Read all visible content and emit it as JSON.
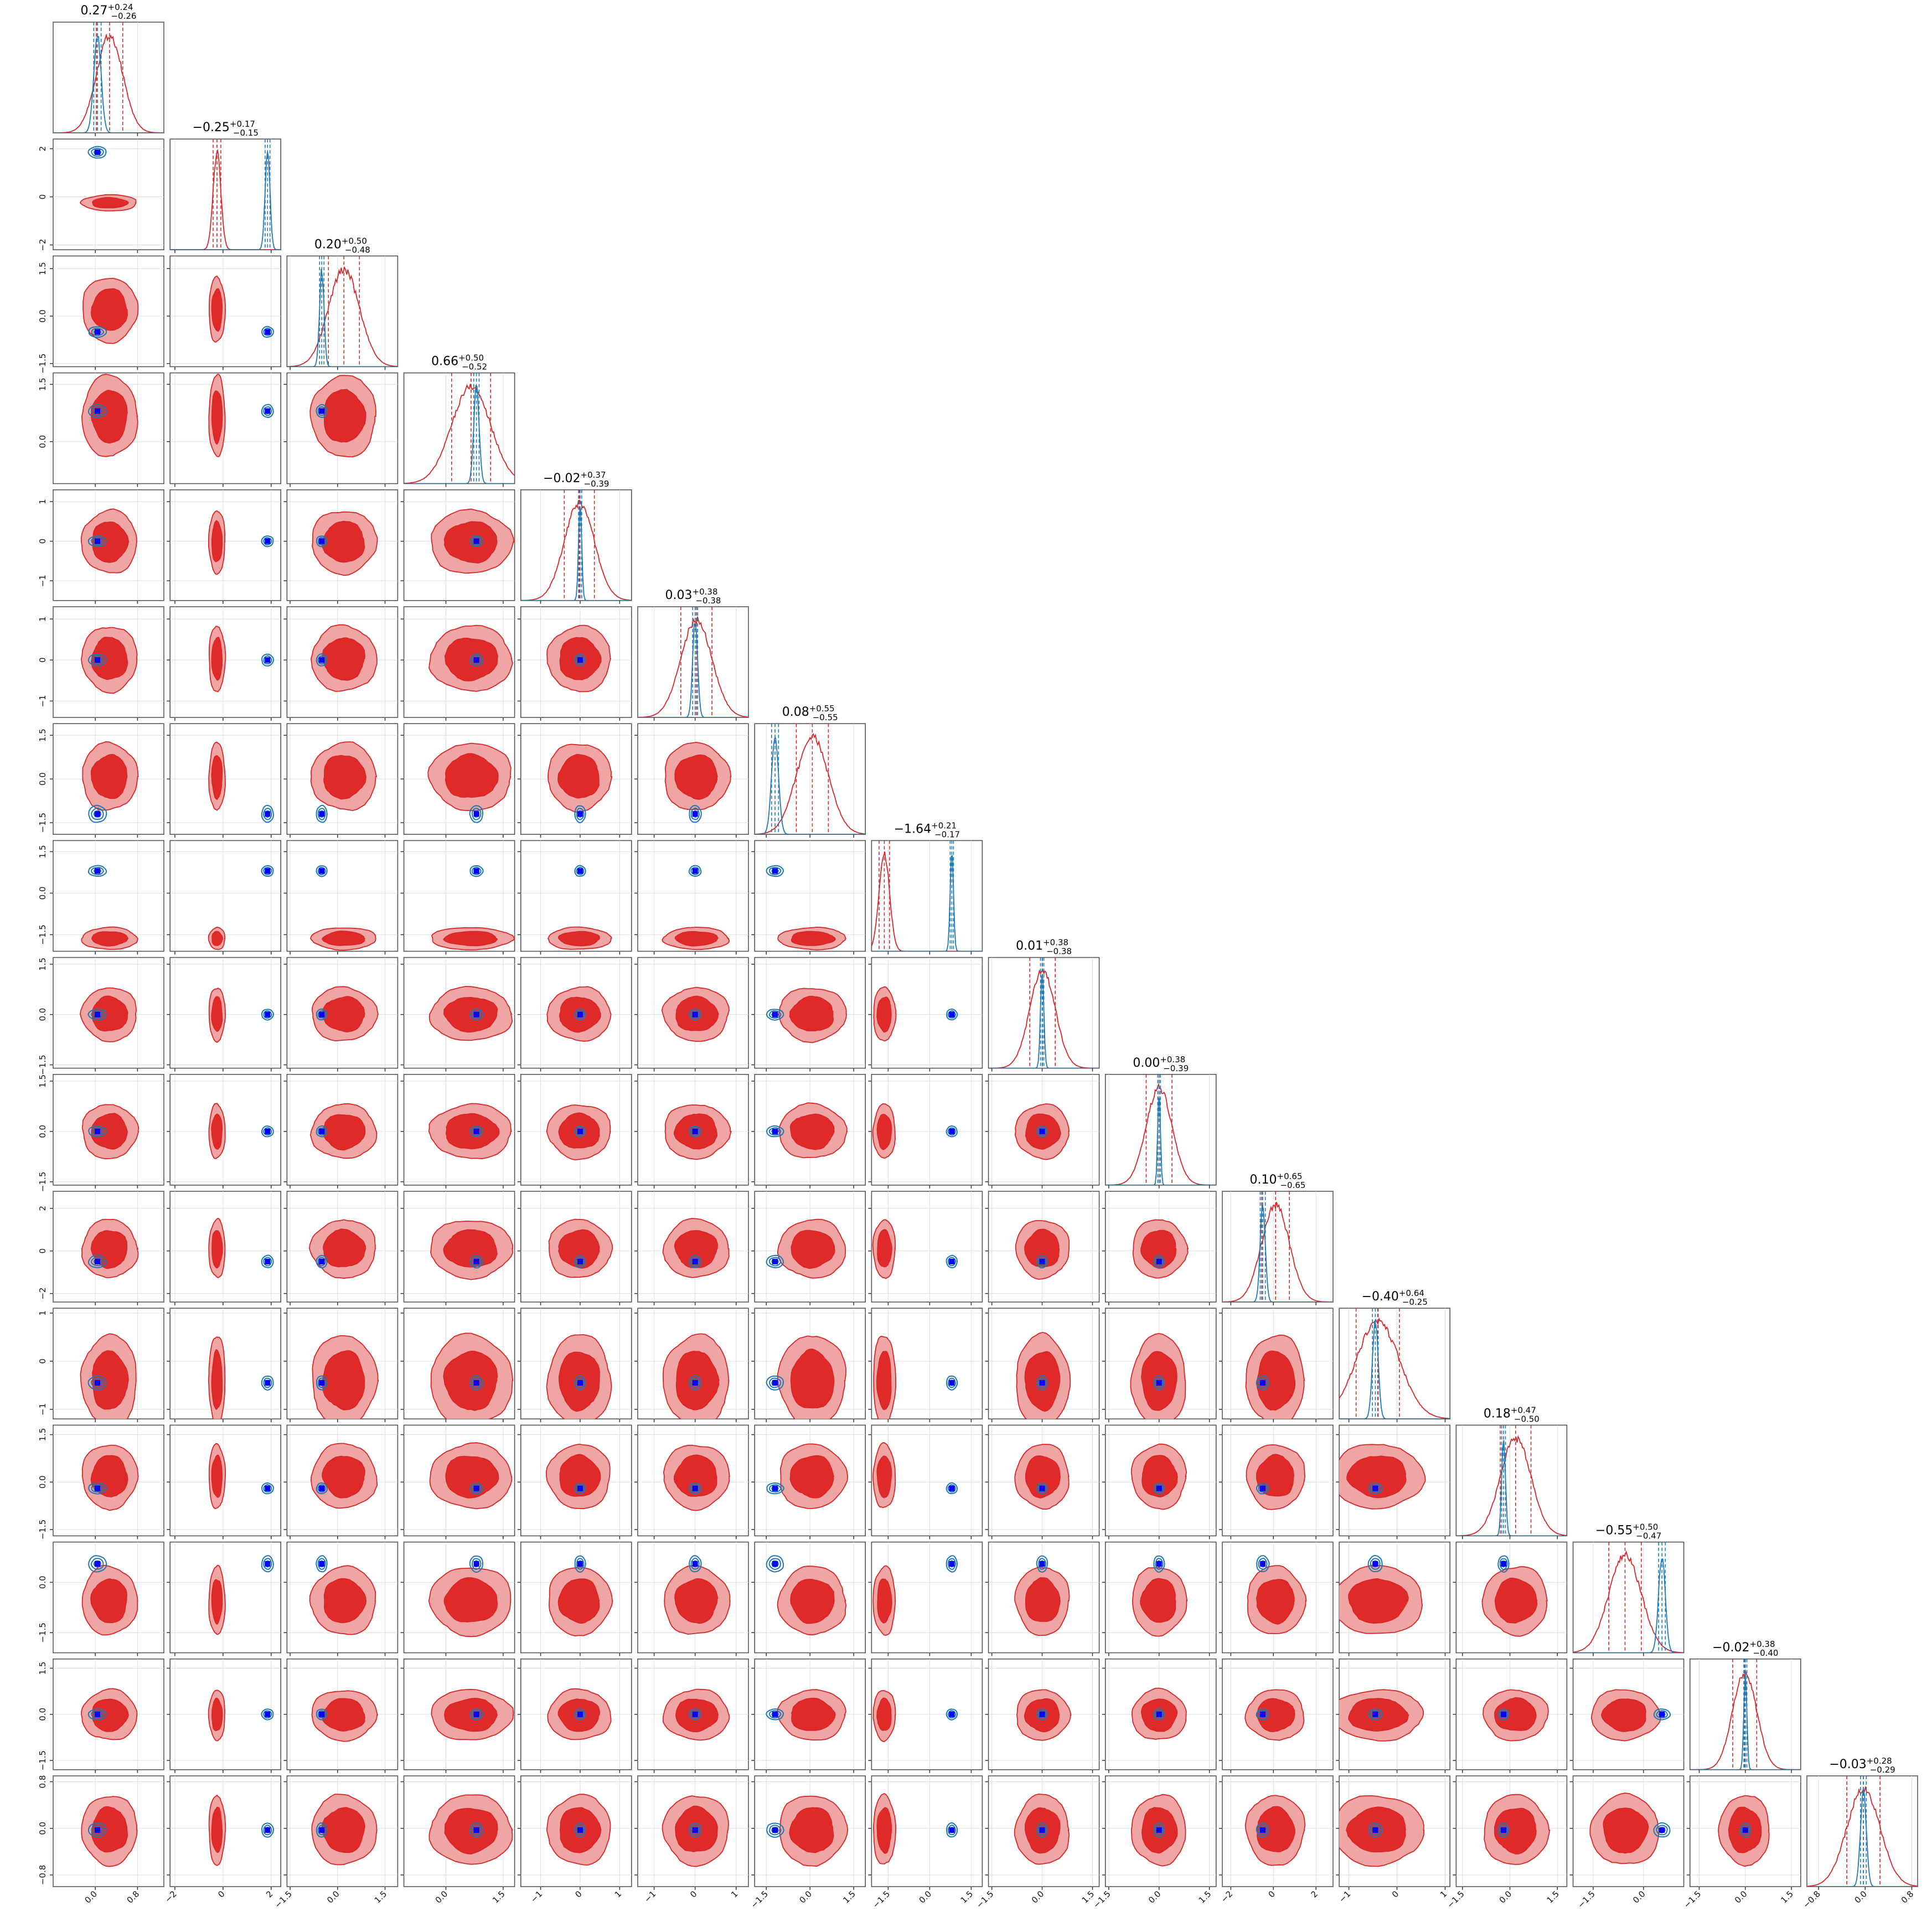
{
  "chart_data": {
    "type": "corner",
    "n_params": 16,
    "colors": {
      "posterior_a": "#1f77b4",
      "posterior_b": "#d62728",
      "truth_marker": "#0000ff",
      "fill_inner": "#e02a2a",
      "fill_outer": "#f0a5a5"
    },
    "titles": [
      {
        "value": "0.27",
        "plus": "+0.24",
        "minus": "−0.26"
      },
      {
        "value": "−0.25",
        "plus": "+0.17",
        "minus": "−0.15"
      },
      {
        "value": "0.20",
        "plus": "+0.50",
        "minus": "−0.48"
      },
      {
        "value": "0.66",
        "plus": "+0.50",
        "minus": "−0.52"
      },
      {
        "value": "−0.02",
        "plus": "+0.37",
        "minus": "−0.39"
      },
      {
        "value": "0.03",
        "plus": "+0.38",
        "minus": "−0.38"
      },
      {
        "value": "0.08",
        "plus": "+0.55",
        "minus": "−0.55"
      },
      {
        "value": "−1.64",
        "plus": "+0.21",
        "minus": "−0.17"
      },
      {
        "value": "0.01",
        "plus": "+0.38",
        "minus": "−0.38"
      },
      {
        "value": "0.00",
        "plus": "+0.38",
        "minus": "−0.39"
      },
      {
        "value": "0.10",
        "plus": "+0.65",
        "minus": "−0.65"
      },
      {
        "value": "−0.40",
        "plus": "+0.64",
        "minus": "−0.25"
      },
      {
        "value": "0.18",
        "plus": "+0.47",
        "minus": "−0.50"
      },
      {
        "value": "−0.55",
        "plus": "+0.50",
        "minus": "−0.47"
      },
      {
        "value": "−0.02",
        "plus": "+0.38",
        "minus": "−0.40"
      },
      {
        "value": "−0.03",
        "plus": "+0.28",
        "minus": "−0.29"
      }
    ],
    "ranges": [
      [
        -0.8,
        1.3
      ],
      [
        -2.2,
        2.4
      ],
      [
        -1.6,
        1.9
      ],
      [
        -1.1,
        1.8
      ],
      [
        -1.5,
        1.3
      ],
      [
        -1.4,
        1.3
      ],
      [
        -1.9,
        1.9
      ],
      [
        -2.1,
        1.9
      ],
      [
        -1.6,
        1.7
      ],
      [
        -1.6,
        1.7
      ],
      [
        -2.4,
        2.8
      ],
      [
        -1.2,
        1.1
      ],
      [
        -1.7,
        1.8
      ],
      [
        -2.1,
        1.2
      ],
      [
        -1.8,
        1.8
      ],
      [
        -1.0,
        0.9
      ]
    ],
    "ticks": [
      {
        "values": [
          0.0,
          0.8
        ],
        "labels": [
          "0.0",
          "0.8"
        ]
      },
      {
        "values": [
          -2,
          0,
          2
        ],
        "labels": [
          "−2",
          "0",
          "2"
        ]
      },
      {
        "values": [
          -1.5,
          0.0,
          1.5
        ],
        "labels": [
          "−1.5",
          "0.0",
          "1.5"
        ]
      },
      {
        "values": [
          0.0,
          1.5
        ],
        "labels": [
          "0.0",
          "1.5"
        ]
      },
      {
        "values": [
          -1,
          0,
          1
        ],
        "labels": [
          "−1",
          "0",
          "1"
        ]
      },
      {
        "values": [
          -1,
          0,
          1
        ],
        "labels": [
          "−1",
          "0",
          "1"
        ]
      },
      {
        "values": [
          -1.5,
          0.0,
          1.5
        ],
        "labels": [
          "−1.5",
          "0.0",
          "1.5"
        ]
      },
      {
        "values": [
          -1.5,
          0.0,
          1.5
        ],
        "labels": [
          "−1.5",
          "0.0",
          "1.5"
        ]
      },
      {
        "values": [
          -1.5,
          0.0,
          1.5
        ],
        "labels": [
          "−1.5",
          "0.0",
          "1.5"
        ]
      },
      {
        "values": [
          -1.5,
          0.0,
          1.5
        ],
        "labels": [
          "−1.5",
          "0.0",
          "1.5"
        ]
      },
      {
        "values": [
          -2,
          0,
          2
        ],
        "labels": [
          "−2",
          "0",
          "2"
        ]
      },
      {
        "values": [
          -1,
          0,
          1
        ],
        "labels": [
          "−1",
          "0",
          "1"
        ]
      },
      {
        "values": [
          -1.5,
          0.0,
          1.5
        ],
        "labels": [
          "−1.5",
          "0.0",
          "1.5"
        ]
      },
      {
        "values": [
          -1.5,
          0.0
        ],
        "labels": [
          "−1.5",
          "0.0"
        ]
      },
      {
        "values": [
          -1.5,
          0.0,
          1.5
        ],
        "labels": [
          "−1.5",
          "0.0",
          "1.5"
        ]
      },
      {
        "values": [
          -0.8,
          0.0,
          0.8
        ],
        "labels": [
          "−0.8",
          "0.0",
          "0.8"
        ]
      }
    ],
    "posterior_a": {
      "mean": [
        0.04,
        1.85,
        -0.5,
        0.8,
        0.0,
        0.0,
        -1.2,
        0.8,
        0.0,
        0.0,
        -0.5,
        -0.45,
        -0.2,
        0.55,
        0.0,
        -0.03
      ],
      "sigma": [
        0.07,
        0.1,
        0.07,
        0.07,
        0.04,
        0.06,
        0.12,
        0.06,
        0.05,
        0.04,
        0.12,
        0.06,
        0.06,
        0.1,
        0.05,
        0.05
      ]
    },
    "posterior_b": {
      "mean": [
        0.27,
        -0.25,
        0.2,
        0.66,
        -0.02,
        0.03,
        0.08,
        -1.64,
        0.01,
        0.0,
        0.1,
        -0.4,
        0.18,
        -0.55,
        -0.02,
        -0.03
      ],
      "sigma": [
        0.25,
        0.16,
        0.49,
        0.51,
        0.38,
        0.38,
        0.55,
        0.19,
        0.38,
        0.385,
        0.65,
        0.45,
        0.485,
        0.485,
        0.39,
        0.285
      ]
    },
    "truth": [
      0.04,
      1.85,
      -0.5,
      0.8,
      0.0,
      0.0,
      -1.2,
      0.8,
      0.0,
      0.0,
      -0.5,
      -0.45,
      -0.2,
      0.55,
      0.0,
      -0.03
    ]
  }
}
